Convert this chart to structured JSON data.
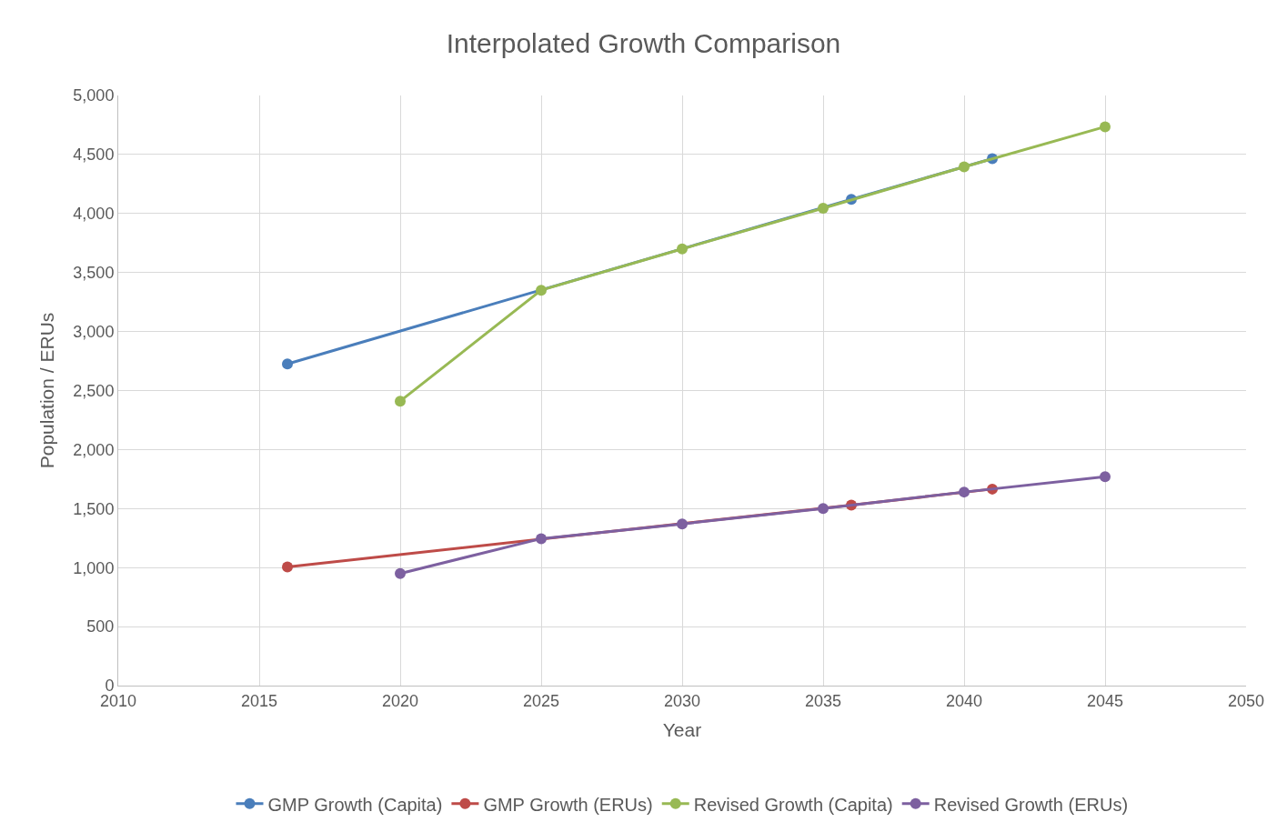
{
  "chart_data": {
    "type": "line",
    "title": "Interpolated Growth Comparison",
    "xlabel": "Year",
    "ylabel": "Population / ERUs",
    "xlim": [
      2010,
      2050
    ],
    "xticks": [
      2010,
      2015,
      2020,
      2025,
      2030,
      2035,
      2040,
      2045,
      2050
    ],
    "ylim": [
      0,
      5000
    ],
    "yticks": [
      {
        "value": 0,
        "label": "0"
      },
      {
        "value": 500,
        "label": "500"
      },
      {
        "value": 1000,
        "label": "1,000"
      },
      {
        "value": 1500,
        "label": "1,500"
      },
      {
        "value": 2000,
        "label": "2,000"
      },
      {
        "value": 2500,
        "label": "2,500"
      },
      {
        "value": 3000,
        "label": "3,000"
      },
      {
        "value": 3500,
        "label": "3,500"
      },
      {
        "value": 4000,
        "label": "4,000"
      },
      {
        "value": 4500,
        "label": "4,500"
      },
      {
        "value": 5000,
        "label": "5,000"
      }
    ],
    "grid": true,
    "legend": "bottom",
    "marker": "circle",
    "line_style": "solid",
    "series": [
      {
        "name": "GMP Growth (Capita)",
        "color": "#4a7ebb",
        "x": [
          2016,
          2036,
          2041
        ],
        "values": [
          2725,
          4120,
          4465
        ]
      },
      {
        "name": "GMP Growth (ERUs)",
        "color": "#be4b48",
        "x": [
          2016,
          2036,
          2041
        ],
        "values": [
          1005,
          1530,
          1665
        ]
      },
      {
        "name": "Revised Growth (Capita)",
        "color": "#98b954",
        "x": [
          2020,
          2025,
          2030,
          2035,
          2040,
          2045
        ],
        "values": [
          2410,
          3350,
          3700,
          4045,
          4395,
          4735
        ]
      },
      {
        "name": "Revised Growth (ERUs)",
        "color": "#7d60a0",
        "x": [
          2020,
          2025,
          2030,
          2035,
          2040,
          2045
        ],
        "values": [
          950,
          1245,
          1370,
          1500,
          1640,
          1770
        ]
      }
    ]
  }
}
